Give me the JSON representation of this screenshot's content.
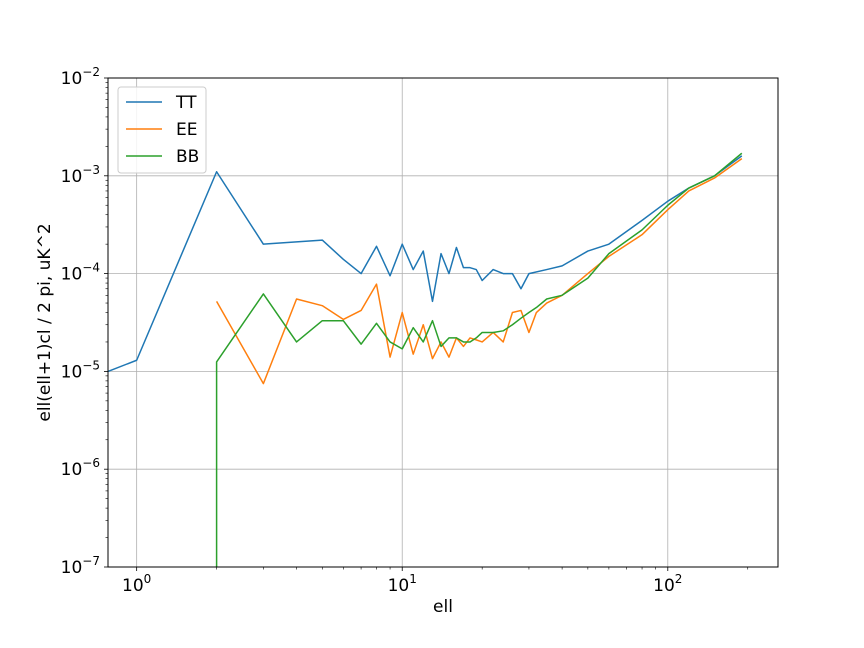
{
  "chart_data": {
    "type": "line",
    "title": "",
    "xlabel": "ell",
    "ylabel": "ell(ell+1)cl / 2 pi, uK^2",
    "xscale": "log",
    "yscale": "log",
    "xlim": [
      0.78,
      260
    ],
    "ylim": [
      1e-07,
      0.01
    ],
    "grid": true,
    "legend": "top-left",
    "x_ticks": [
      {
        "value": 1,
        "base": "10",
        "exp": "0"
      },
      {
        "value": 10,
        "base": "10",
        "exp": "1"
      },
      {
        "value": 100,
        "base": "10",
        "exp": "2"
      }
    ],
    "y_ticks": [
      {
        "value": 1e-07,
        "base": "10",
        "exp": "−7"
      },
      {
        "value": 1e-06,
        "base": "10",
        "exp": "−6"
      },
      {
        "value": 1e-05,
        "base": "10",
        "exp": "−5"
      },
      {
        "value": 0.0001,
        "base": "10",
        "exp": "−4"
      },
      {
        "value": 0.001,
        "base": "10",
        "exp": "−3"
      },
      {
        "value": 0.01,
        "base": "10",
        "exp": "−2"
      }
    ],
    "series": [
      {
        "name": "TT",
        "color": "#1f77b4",
        "x": [
          0.78,
          1,
          2,
          3,
          5,
          6,
          7,
          8,
          9,
          10,
          11,
          12,
          13,
          14,
          15,
          16,
          17,
          18,
          19,
          20,
          22,
          24,
          26,
          28,
          30,
          35,
          40,
          50,
          60,
          80,
          100,
          120,
          150,
          190
        ],
        "y": [
          1e-05,
          1.3e-05,
          0.0011,
          0.0002,
          0.00022,
          0.00014,
          0.0001,
          0.00019,
          9.5e-05,
          0.0002,
          0.00011,
          0.00017,
          5.2e-05,
          0.00016,
          0.0001,
          0.000185,
          0.000115,
          0.000115,
          0.00011,
          8.5e-05,
          0.00011,
          0.0001,
          0.0001,
          7e-05,
          0.0001,
          0.00011,
          0.00012,
          0.00017,
          0.0002,
          0.00035,
          0.00055,
          0.00075,
          0.001,
          0.0016
        ]
      },
      {
        "name": "EE",
        "color": "#ff7f0e",
        "x": [
          2,
          3,
          4,
          5,
          6,
          7,
          8,
          9,
          10,
          11,
          12,
          13,
          14,
          15,
          16,
          17,
          18,
          19,
          20,
          22,
          24,
          26,
          28,
          30,
          32,
          35,
          40,
          50,
          60,
          80,
          100,
          120,
          150,
          190
        ],
        "y": [
          5.2e-05,
          7.5e-06,
          5.5e-05,
          4.7e-05,
          3.4e-05,
          4.2e-05,
          7.8e-05,
          1.4e-05,
          4e-05,
          1.5e-05,
          3e-05,
          1.35e-05,
          2e-05,
          1.4e-05,
          2.2e-05,
          1.8e-05,
          2.2e-05,
          2.1e-05,
          2e-05,
          2.5e-05,
          2e-05,
          4e-05,
          4.2e-05,
          2.5e-05,
          4e-05,
          5e-05,
          6e-05,
          0.0001,
          0.00015,
          0.00025,
          0.00045,
          0.0007,
          0.00095,
          0.0015
        ]
      },
      {
        "name": "BB",
        "color": "#2ca02c",
        "x": [
          2,
          2,
          3,
          4,
          5,
          6,
          7,
          8,
          9,
          10,
          11,
          12,
          13,
          14,
          15,
          16,
          17,
          18,
          19,
          20,
          22,
          24,
          26,
          28,
          30,
          32,
          35,
          40,
          50,
          60,
          80,
          100,
          120,
          150,
          190
        ],
        "y": [
          1e-07,
          1.25e-05,
          6.2e-05,
          2e-05,
          3.3e-05,
          3.3e-05,
          1.9e-05,
          3.1e-05,
          2e-05,
          1.7e-05,
          2.8e-05,
          2e-05,
          3.3e-05,
          1.8e-05,
          2.2e-05,
          2.2e-05,
          2e-05,
          2e-05,
          2.2e-05,
          2.5e-05,
          2.5e-05,
          2.6e-05,
          3e-05,
          3.5e-05,
          4e-05,
          4.5e-05,
          5.5e-05,
          6e-05,
          9e-05,
          0.00016,
          0.00028,
          0.0005,
          0.00075,
          0.001,
          0.0017
        ]
      }
    ]
  }
}
